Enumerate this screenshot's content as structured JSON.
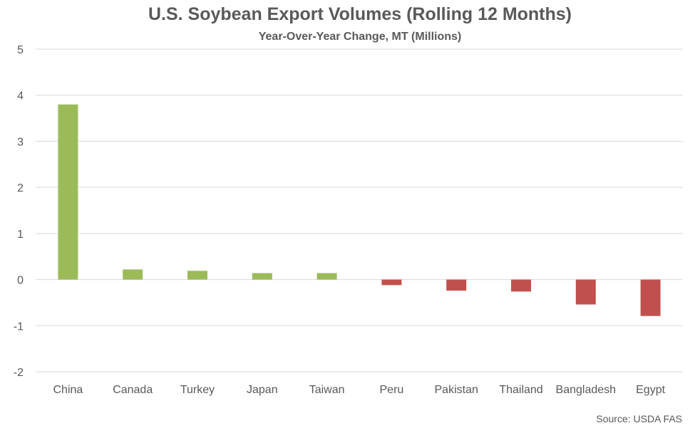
{
  "chart_data": {
    "type": "bar",
    "title": "U.S. Soybean Export Volumes (Rolling 12 Months)",
    "subtitle": "Year-Over-Year Change, MT (Millions)",
    "categories": [
      "China",
      "Canada",
      "Turkey",
      "Japan",
      "Taiwan",
      "Peru",
      "Pakistan",
      "Thailand",
      "Bangladesh",
      "Egypt"
    ],
    "values": [
      3.8,
      0.22,
      0.19,
      0.14,
      0.14,
      -0.12,
      -0.24,
      -0.26,
      -0.54,
      -0.79
    ],
    "ylim": [
      -2,
      5
    ],
    "yticks": [
      5,
      4,
      3,
      2,
      1,
      0,
      -1,
      -2
    ],
    "grid": true,
    "legend": "none",
    "xlabel": "",
    "ylabel": "",
    "colors": {
      "positive": "#9bbb59",
      "negative": "#c0504d",
      "grid": "#d9d9d9",
      "text": "#595959"
    }
  },
  "source": "Source: USDA FAS"
}
